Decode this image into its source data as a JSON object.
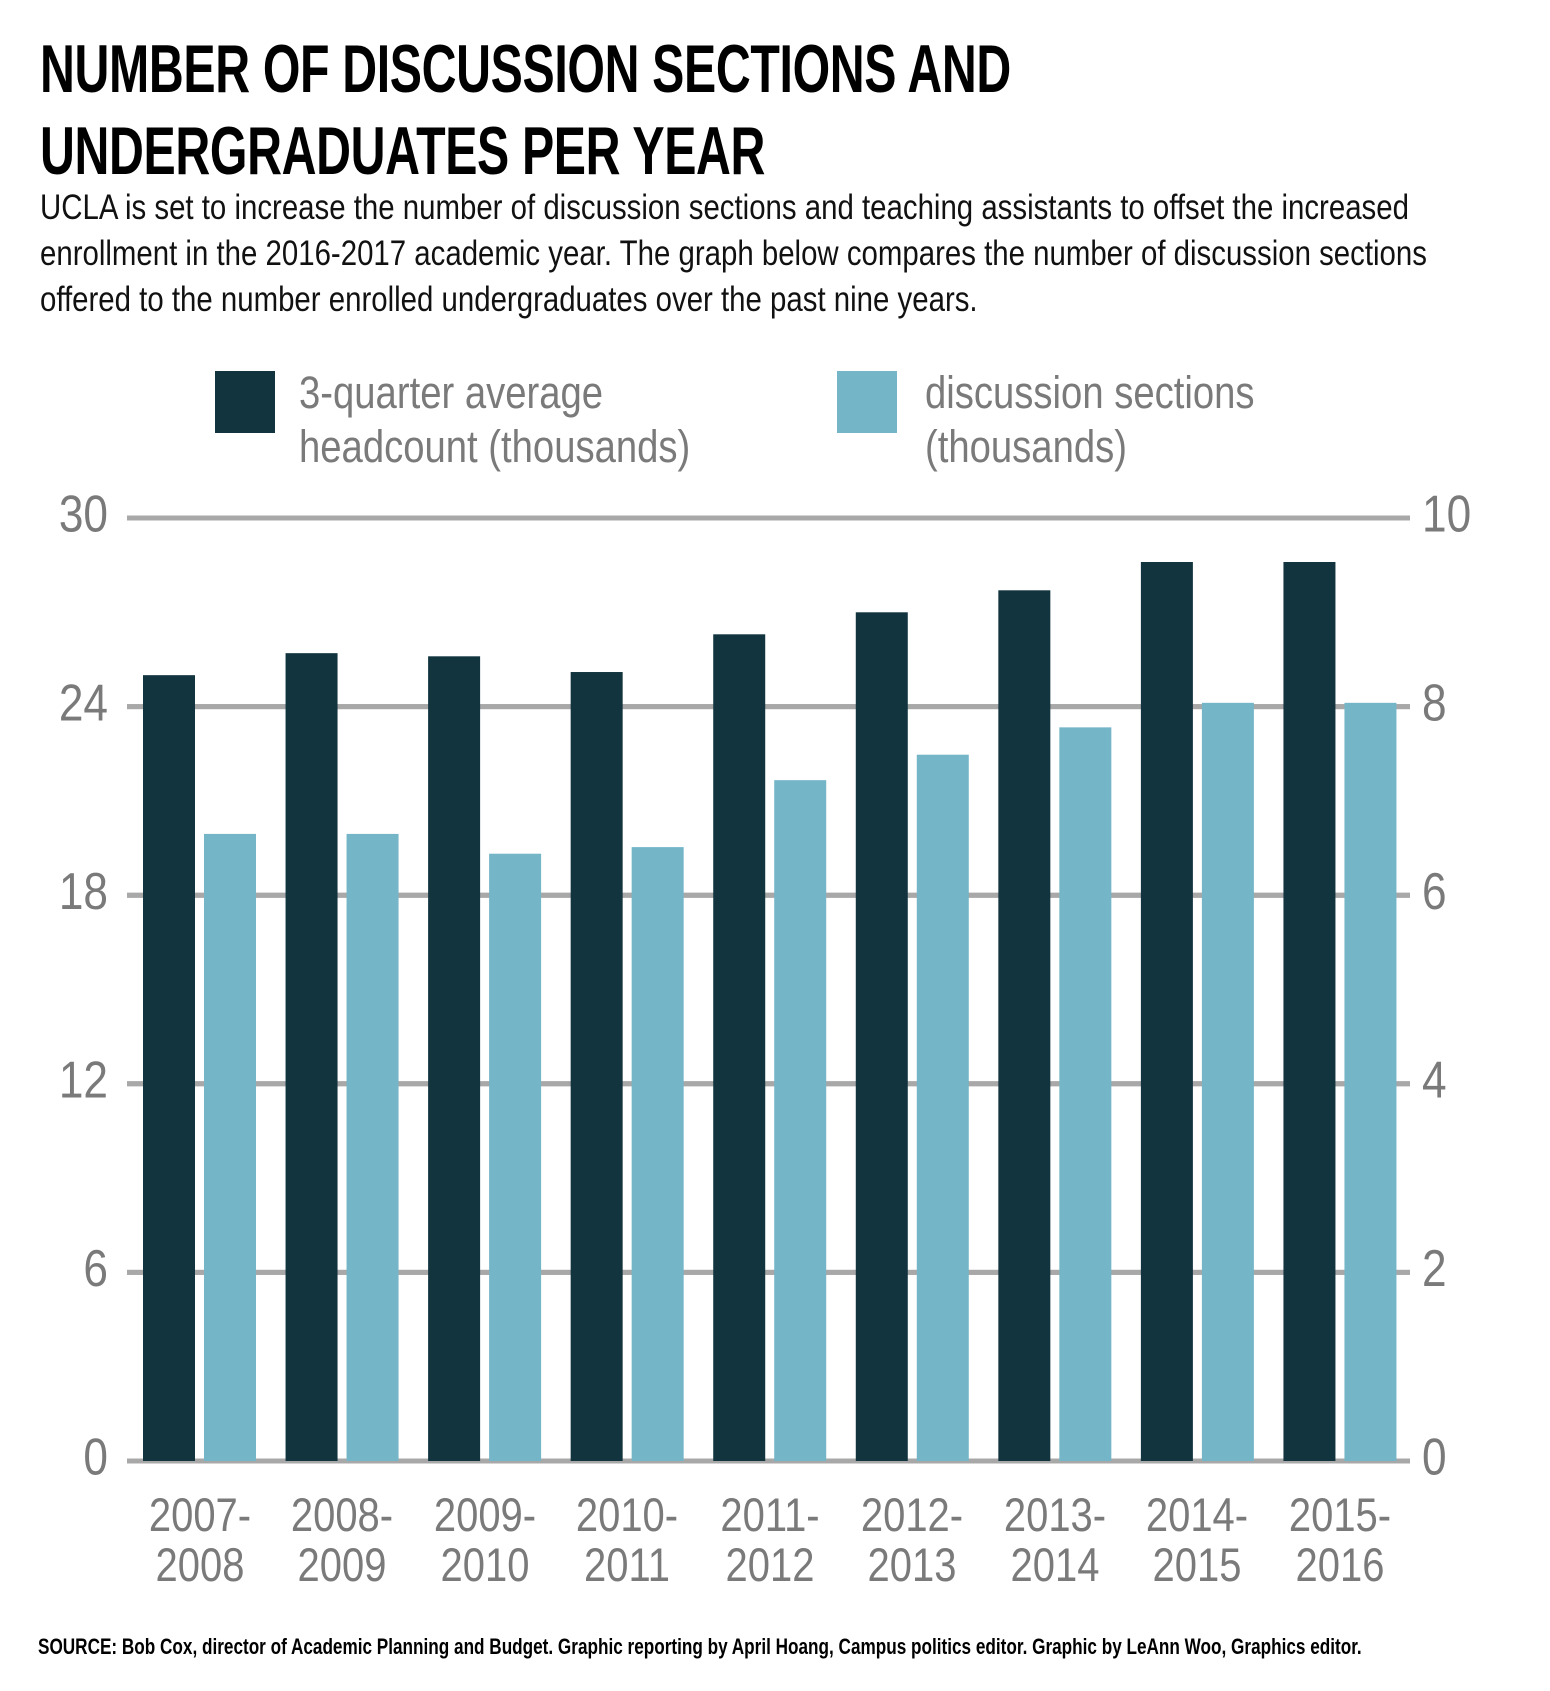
{
  "chart_data": {
    "type": "bar",
    "title": "NUMBER OF DISCUSSION SECTIONS AND UNDERGRADUATES PER YEAR",
    "subtitle": "UCLA is set to increase the number of discussion sections and teaching assistants to offset the increased enrollment in the 2016-2017 academic year. The graph below compares the number of discussion sections offered to the number enrolled undergraduates over the past nine years.",
    "source": "SOURCE: Bob Cox, director of Academic Planning and Budget. Graphic reporting by April Hoang, Campus politics editor. Graphic by LeAnn Woo, Graphics editor.",
    "categories": [
      "2007-2008",
      "2008-2009",
      "2009-2010",
      "2010-2011",
      "2011-2012",
      "2012-2013",
      "2013-2014",
      "2014-2015",
      "2015-2016"
    ],
    "series": [
      {
        "name": "3-quarter average headcount (thousands)",
        "color": "#12343f",
        "values": [
          25.0,
          25.7,
          25.6,
          25.1,
          26.3,
          27.0,
          27.7,
          28.6,
          28.6
        ]
      },
      {
        "name": "discussion sections (thousands)",
        "color": "#74b6c8",
        "axis": "y2",
        "values": [
          6.65,
          6.65,
          6.44,
          6.51,
          7.22,
          7.49,
          7.78,
          8.04,
          8.04
        ]
      }
    ],
    "ylim": [
      0,
      30
    ],
    "yticks": [
      0,
      6,
      12,
      18,
      24,
      30
    ],
    "y2lim": [
      0,
      10
    ],
    "y2ticks": [
      0,
      2,
      4,
      6,
      8,
      10
    ],
    "grid": true
  }
}
